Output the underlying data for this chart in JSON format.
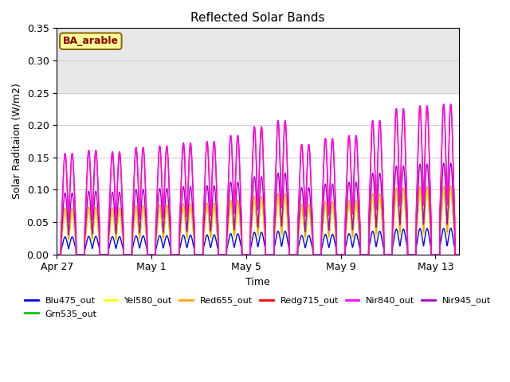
{
  "title": "Reflected Solar Bands",
  "xlabel": "Time",
  "ylabel": "Solar Raditaion (W/m2)",
  "ylim": [
    0,
    0.35
  ],
  "yticks": [
    0.0,
    0.05,
    0.1,
    0.15,
    0.2,
    0.25,
    0.3,
    0.35
  ],
  "annotation_text": "BA_arable",
  "annotation_bg": "#FFFF99",
  "annotation_border": "#8B6914",
  "annotation_text_color": "#8B0000",
  "plot_bg": "#FFFFFF",
  "shaded_bg": "#E8E8E8",
  "lines": [
    {
      "label": "Blu475_out",
      "color": "#0000FF",
      "peak": 0.04,
      "zorder": 3
    },
    {
      "label": "Grn535_out",
      "color": "#00CC00",
      "peak": 0.095,
      "zorder": 4
    },
    {
      "label": "Yel580_out",
      "color": "#FFFF00",
      "peak": 0.095,
      "zorder": 4
    },
    {
      "label": "Red655_out",
      "color": "#FFA500",
      "peak": 0.105,
      "zorder": 5
    },
    {
      "label": "Redg715_out",
      "color": "#FF0000",
      "peak": 0.23,
      "zorder": 6
    },
    {
      "label": "Nir840_out",
      "color": "#FF00FF",
      "peak": 0.23,
      "zorder": 7
    },
    {
      "label": "Nir945_out",
      "color": "#AA00CC",
      "peak": 0.14,
      "zorder": 5
    }
  ],
  "n_days": 18,
  "xtick_labels": [
    "Apr 27",
    "May 1",
    "May 5",
    "May 9",
    "May 13"
  ],
  "xtick_day_offsets": [
    0,
    4,
    8,
    12,
    16
  ],
  "grid_color": "#D0D0D0",
  "linewidth": 1.0,
  "peak_factors": [
    0.68,
    0.7,
    0.69,
    0.72,
    0.73,
    0.75,
    0.76,
    0.8,
    0.86,
    0.9,
    0.74,
    0.78,
    0.8,
    0.9,
    0.98,
    1.0,
    1.01,
    1.02
  ],
  "points_per_day": 100
}
